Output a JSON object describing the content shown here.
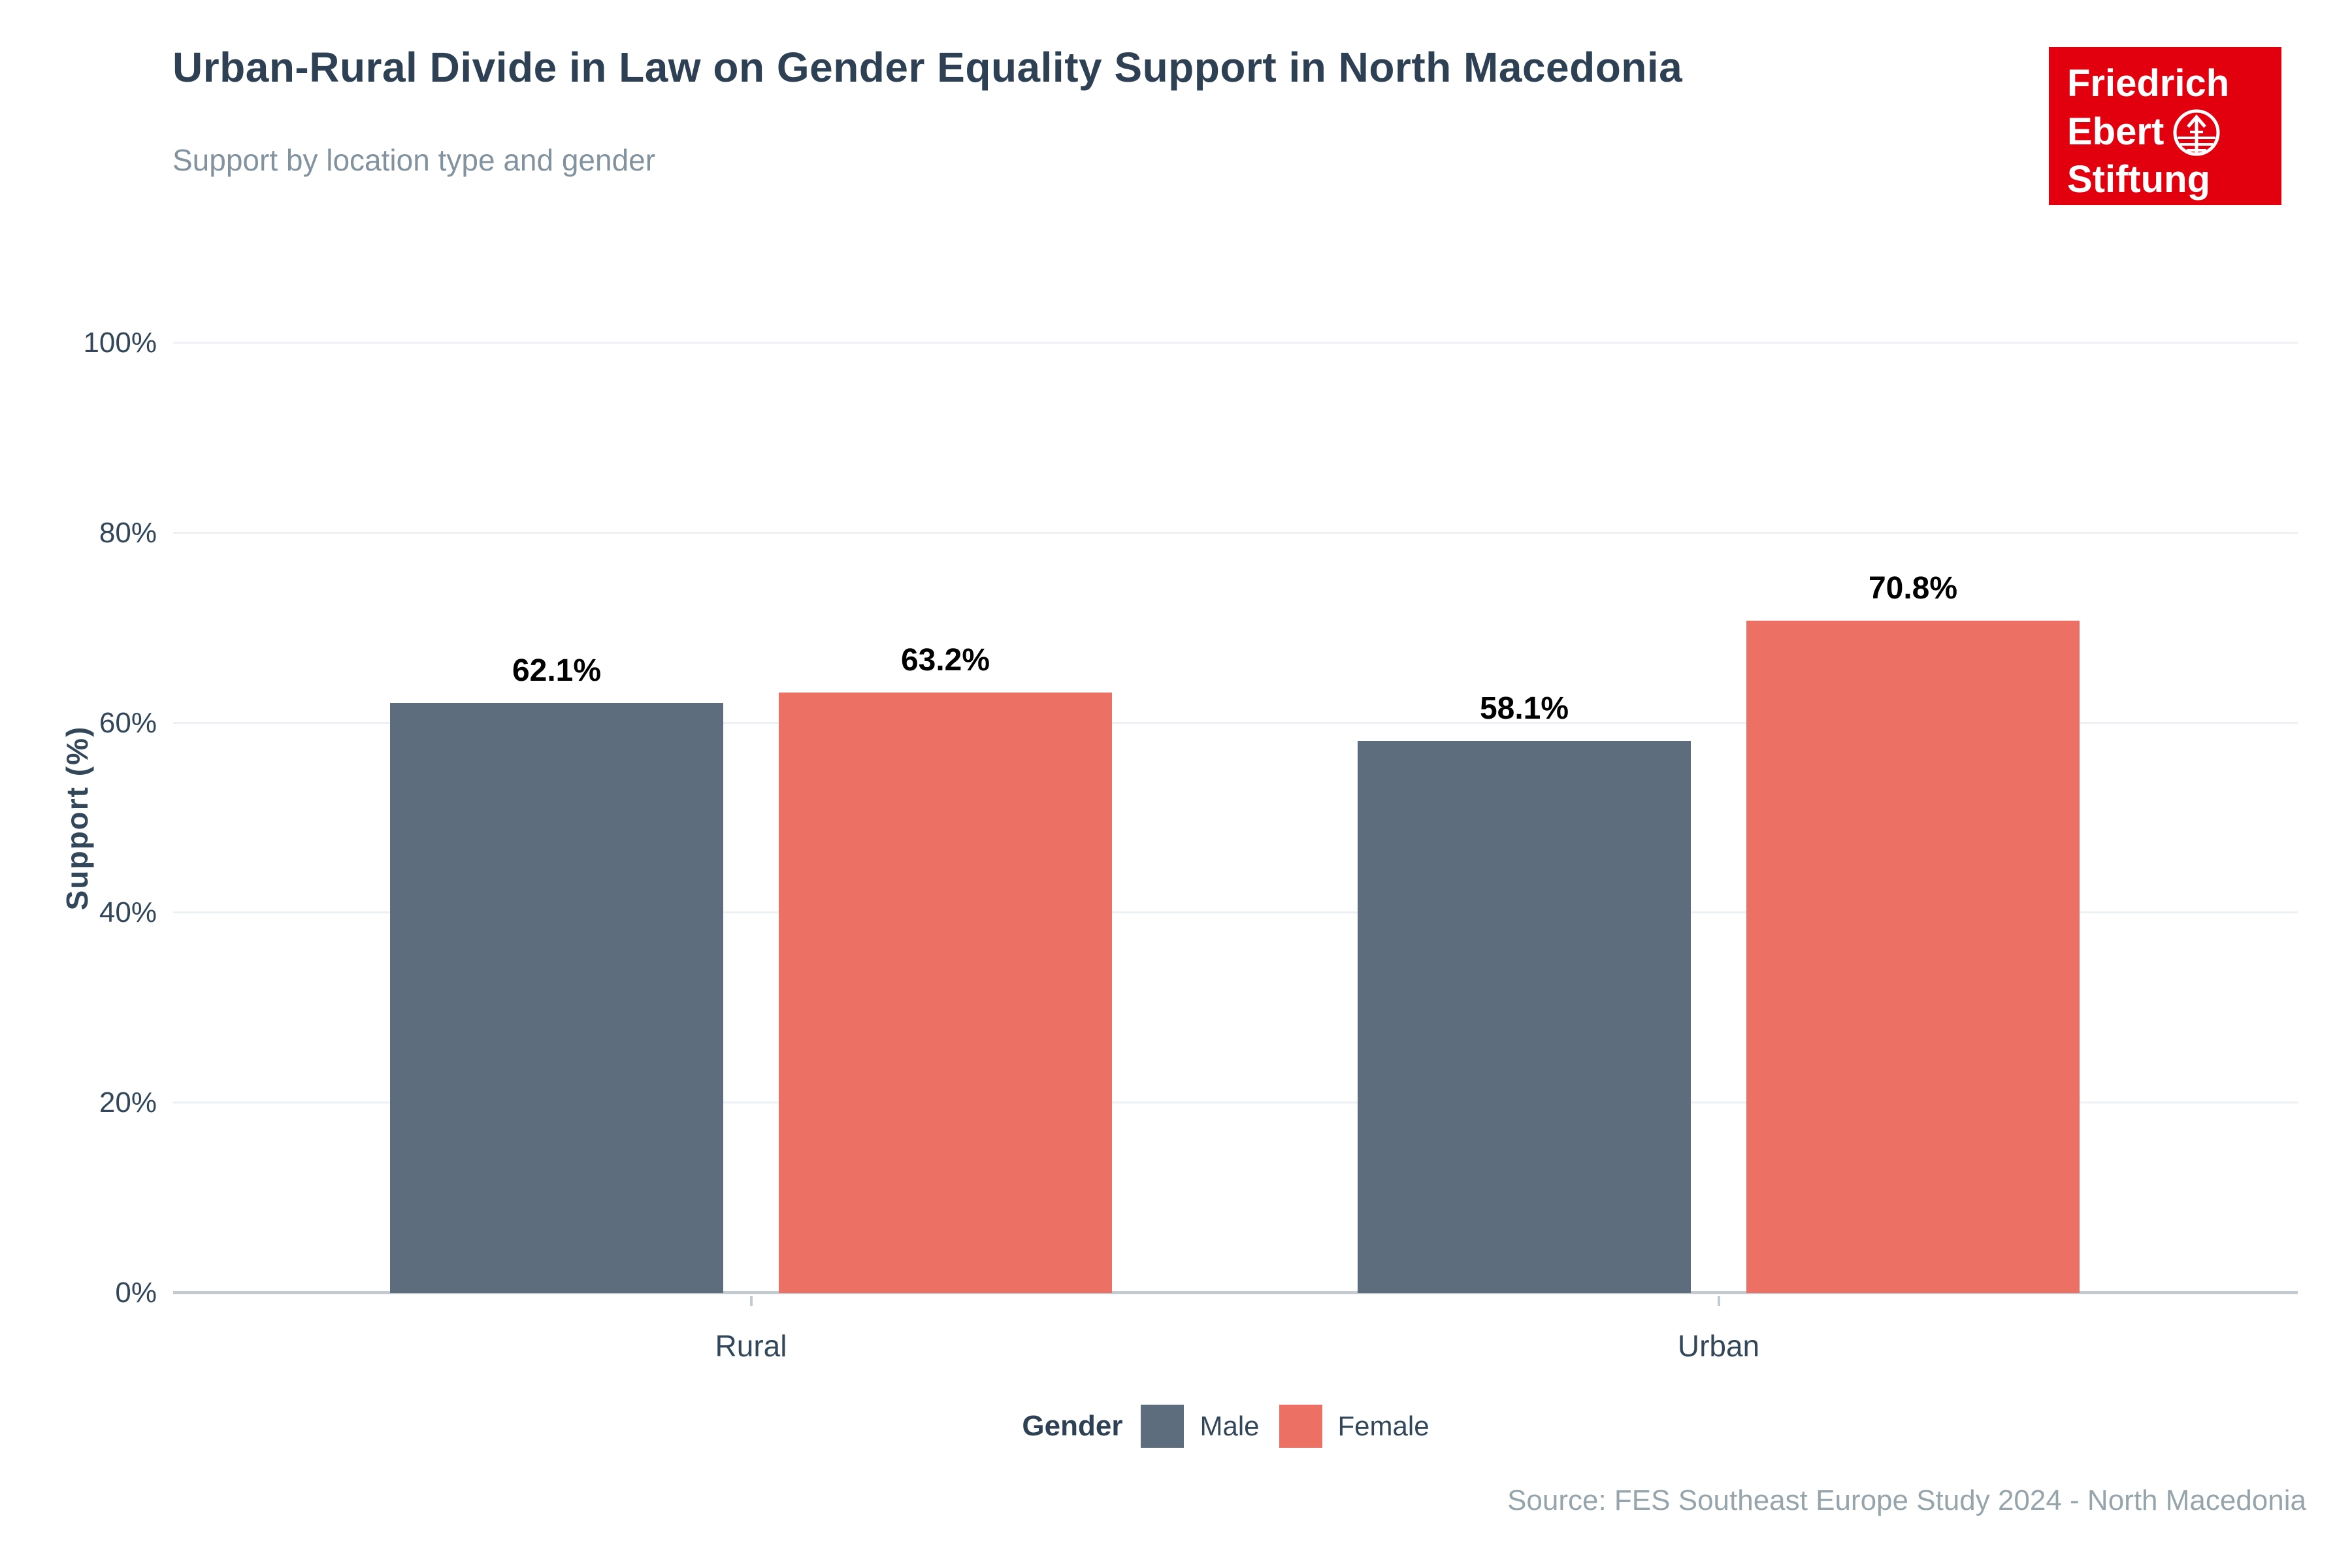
{
  "header": {
    "title": "Urban-Rural Divide in Law on Gender Equality Support in North Macedonia",
    "subtitle": "Support by location type and gender"
  },
  "logo": {
    "line1": "Friedrich",
    "line2": "Ebert",
    "line3": "Stiftung",
    "background_color": "#e2000f",
    "globe_icon": "globe-arrow-icon"
  },
  "chart_data": {
    "type": "bar",
    "categories": [
      "Rural",
      "Urban"
    ],
    "series": [
      {
        "name": "Male",
        "color": "#5d6d7e",
        "values": [
          62.1,
          58.1
        ],
        "labels": [
          "62.1%",
          "58.1%"
        ]
      },
      {
        "name": "Female",
        "color": "#ec7063",
        "values": [
          63.2,
          70.8
        ],
        "labels": [
          "63.2%",
          "70.8%"
        ]
      }
    ],
    "title": "Urban-Rural Divide in Law on Gender Equality Support in North Macedonia",
    "subtitle": "Support by location type and gender",
    "xlabel": "",
    "ylabel": "Support (%)",
    "ylim": [
      0,
      100
    ],
    "ytick_labels": [
      "0%",
      "20%",
      "40%",
      "60%",
      "80%",
      "100%"
    ],
    "ytick_values": [
      0,
      20,
      40,
      60,
      80,
      100
    ],
    "grid": true,
    "legend_position": "bottom"
  },
  "legend": {
    "title": "Gender",
    "items": [
      {
        "label": "Male",
        "color": "#5d6d7e"
      },
      {
        "label": "Female",
        "color": "#ec7063"
      }
    ]
  },
  "source": "Source: FES Southeast Europe Study 2024 - North Macedonia",
  "colors": {
    "title_text": "#2e4053",
    "subtitle_text": "#82929e",
    "axis_text": "#33475a",
    "grid_line": "#eef1f3",
    "axis_line": "#c3cad0",
    "value_label_text": "#000000",
    "source_text": "#96a5ac"
  }
}
